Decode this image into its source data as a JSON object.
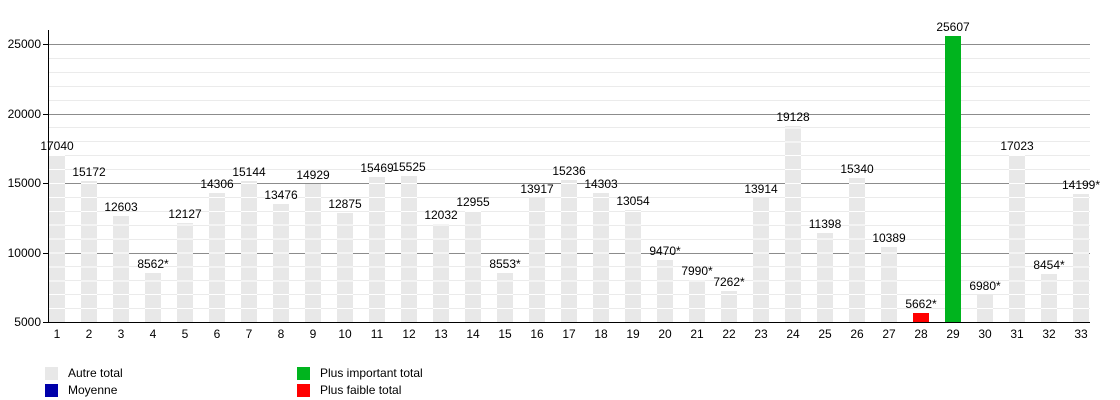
{
  "chart_data": {
    "type": "bar",
    "title": "",
    "x_labels": [
      "1",
      "2",
      "3",
      "4",
      "5",
      "6",
      "7",
      "8",
      "9",
      "10",
      "11",
      "12",
      "13",
      "14",
      "15",
      "16",
      "17",
      "18",
      "19",
      "20",
      "21",
      "22",
      "23",
      "24",
      "25",
      "26",
      "27",
      "28",
      "29",
      "30",
      "31",
      "32",
      "33"
    ],
    "values": [
      17040,
      15172,
      12603,
      8562,
      12127,
      14306,
      15144,
      13476,
      14929,
      12875,
      15469,
      15525,
      12032,
      12955,
      8553,
      13917,
      15236,
      14303,
      13054,
      9470,
      7990,
      7262,
      13914,
      19128,
      11398,
      15340,
      10389,
      5662,
      25607,
      6980,
      17023,
      8454,
      14199
    ],
    "bar_labels": [
      "17040",
      "15172",
      "12603",
      "8562*",
      "12127",
      "14306",
      "15144",
      "13476",
      "14929",
      "12875",
      "15469",
      "15525",
      "12032",
      "12955",
      "8553*",
      "13917",
      "15236",
      "14303",
      "13054",
      "9470*",
      "7990*",
      "7262*",
      "13914",
      "19128",
      "11398",
      "15340",
      "10389",
      "5662*",
      "25607",
      "6980*",
      "17023",
      "8454*",
      "14199*"
    ],
    "bar_colors": [
      "#e8e8e8",
      "#e8e8e8",
      "#e8e8e8",
      "#e8e8e8",
      "#e8e8e8",
      "#e8e8e8",
      "#e8e8e8",
      "#e8e8e8",
      "#e8e8e8",
      "#e8e8e8",
      "#e8e8e8",
      "#e8e8e8",
      "#e8e8e8",
      "#e8e8e8",
      "#e8e8e8",
      "#e8e8e8",
      "#e8e8e8",
      "#e8e8e8",
      "#e8e8e8",
      "#e8e8e8",
      "#e8e8e8",
      "#e8e8e8",
      "#e8e8e8",
      "#e8e8e8",
      "#e8e8e8",
      "#e8e8e8",
      "#e8e8e8",
      "#ff0000",
      "#00b41e",
      "#e8e8e8",
      "#e8e8e8",
      "#e8e8e8",
      "#e8e8e8"
    ],
    "default_bar_color": "#e8e8e8",
    "max_value": 25607,
    "min_value": 5662,
    "ylim": [
      5000,
      26000
    ],
    "yticks": [
      5000,
      10000,
      15000,
      20000,
      25000
    ],
    "minor_grid_step": 1000,
    "grid": true,
    "legend_position": "bottom",
    "legend": [
      {
        "label": "Autre total",
        "color": "#e8e8e8"
      },
      {
        "label": "Moyenne",
        "color": "#0000aa"
      },
      {
        "label": "Plus important total",
        "color": "#00b41e"
      },
      {
        "label": "Plus faible total",
        "color": "#ff0000"
      }
    ]
  }
}
